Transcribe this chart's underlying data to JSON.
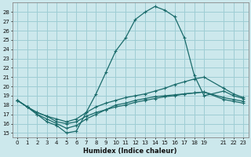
{
  "xlabel": "Humidex (Indice chaleur)",
  "bg_color": "#cce8ec",
  "grid_color": "#9ecdd4",
  "line_color": "#1a6b6b",
  "xlim": [
    -0.5,
    23.5
  ],
  "ylim": [
    14.5,
    29.0
  ],
  "xticks": [
    0,
    1,
    2,
    3,
    4,
    5,
    6,
    7,
    8,
    9,
    10,
    11,
    12,
    13,
    14,
    15,
    16,
    17,
    18,
    19,
    21,
    22,
    23
  ],
  "yticks": [
    15,
    16,
    17,
    18,
    19,
    20,
    21,
    22,
    23,
    24,
    25,
    26,
    27,
    28
  ],
  "series": [
    {
      "x": [
        0,
        1,
        2,
        3,
        4,
        5,
        6,
        7,
        8,
        9,
        10,
        11,
        12,
        13,
        14,
        15,
        16,
        17,
        18,
        19,
        21,
        22,
        23
      ],
      "y": [
        18.5,
        17.8,
        17.0,
        16.2,
        15.8,
        15.0,
        15.2,
        17.2,
        19.2,
        21.5,
        23.8,
        25.2,
        27.2,
        28.0,
        28.6,
        28.2,
        27.5,
        25.2,
        21.2,
        19.0,
        19.5,
        19.0,
        18.7
      ]
    },
    {
      "x": [
        0,
        1,
        2,
        3,
        4,
        5,
        6,
        7,
        8,
        9,
        10,
        11,
        12,
        13,
        14,
        15,
        16,
        17,
        18,
        19,
        21,
        22,
        23
      ],
      "y": [
        18.5,
        17.8,
        17.2,
        16.8,
        16.5,
        16.2,
        16.5,
        17.2,
        17.8,
        18.2,
        18.5,
        18.8,
        19.0,
        19.2,
        19.5,
        19.8,
        20.2,
        20.5,
        20.8,
        21.0,
        19.8,
        19.2,
        18.8
      ]
    },
    {
      "x": [
        0,
        1,
        2,
        3,
        4,
        5,
        6,
        7,
        8,
        9,
        10,
        11,
        12,
        13,
        14,
        15,
        16,
        17,
        18,
        19,
        21,
        22,
        23
      ],
      "y": [
        18.5,
        17.8,
        17.2,
        16.8,
        16.2,
        16.0,
        16.2,
        16.8,
        17.2,
        17.5,
        17.8,
        18.0,
        18.3,
        18.5,
        18.7,
        18.9,
        19.0,
        19.2,
        19.3,
        19.4,
        18.8,
        18.6,
        18.4
      ]
    },
    {
      "x": [
        0,
        1,
        2,
        3,
        4,
        5,
        6,
        7,
        8,
        9,
        10,
        11,
        12,
        13,
        14,
        15,
        16,
        17,
        18,
        19,
        21,
        22,
        23
      ],
      "y": [
        18.5,
        17.8,
        17.0,
        16.5,
        16.0,
        15.5,
        15.8,
        16.5,
        17.0,
        17.5,
        18.0,
        18.2,
        18.5,
        18.7,
        18.9,
        19.0,
        19.1,
        19.2,
        19.3,
        19.4,
        18.6,
        18.4,
        18.2
      ]
    }
  ]
}
